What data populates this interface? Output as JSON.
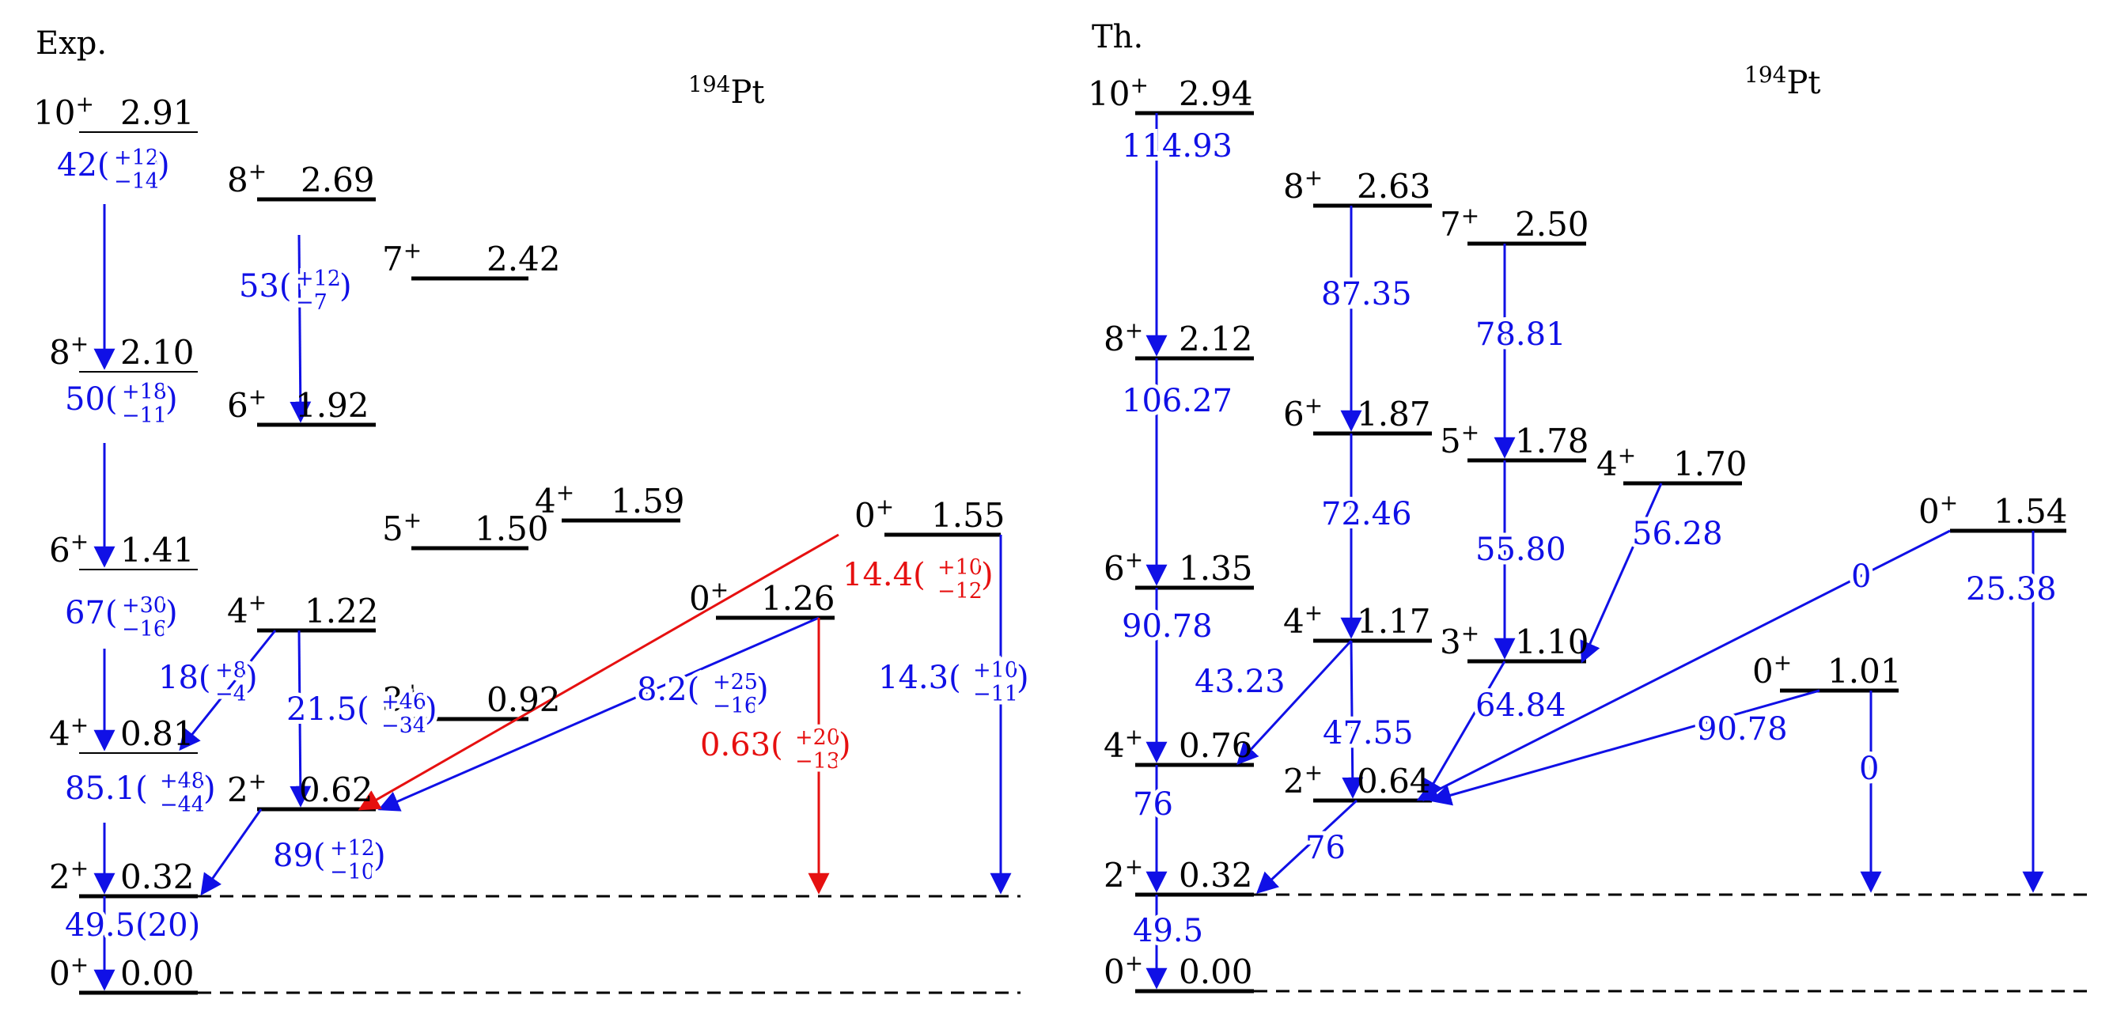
{
  "colors": {
    "level": "#000000",
    "transition": "#1010e6",
    "highlight": "#e61010",
    "background": "#ffffff"
  },
  "panels": [
    {
      "label": "Exp.",
      "nucleus": {
        "mass": "194",
        "element": "Pt"
      },
      "levels": [
        {
          "id": "e10",
          "spin": "10",
          "parity": "+",
          "energy": "2.91"
        },
        {
          "id": "e8g",
          "spin": "8",
          "parity": "+",
          "energy": "2.69"
        },
        {
          "id": "e7",
          "spin": "7",
          "parity": "+",
          "energy": "2.42"
        },
        {
          "id": "e8",
          "spin": "8",
          "parity": "+",
          "energy": "2.10"
        },
        {
          "id": "e6g",
          "spin": "6",
          "parity": "+",
          "energy": "1.92"
        },
        {
          "id": "e4b",
          "spin": "4",
          "parity": "+",
          "energy": "1.59"
        },
        {
          "id": "e0c",
          "spin": "0",
          "parity": "+",
          "energy": "1.55"
        },
        {
          "id": "e5",
          "spin": "5",
          "parity": "+",
          "energy": "1.50"
        },
        {
          "id": "e6",
          "spin": "6",
          "parity": "+",
          "energy": "1.41"
        },
        {
          "id": "e0b",
          "spin": "0",
          "parity": "+",
          "energy": "1.26"
        },
        {
          "id": "e4g",
          "spin": "4",
          "parity": "+",
          "energy": "1.22"
        },
        {
          "id": "e3",
          "spin": "3",
          "parity": "+",
          "energy": "0.92"
        },
        {
          "id": "e4",
          "spin": "4",
          "parity": "+",
          "energy": "0.81"
        },
        {
          "id": "e2g",
          "spin": "2",
          "parity": "+",
          "energy": "0.62"
        },
        {
          "id": "e2",
          "spin": "2",
          "parity": "+",
          "energy": "0.32"
        },
        {
          "id": "e0",
          "spin": "0",
          "parity": "+",
          "energy": "0.00"
        }
      ],
      "transitions": [
        {
          "from": "10+ 2.91",
          "to": "8+ 2.10",
          "value": "42",
          "err_up": "+12",
          "err_down": "−14",
          "color": "blue"
        },
        {
          "from": "8+ 2.69",
          "to": "6+ 1.92",
          "value": "53",
          "err_up": "+12",
          "err_down": "−7",
          "color": "blue"
        },
        {
          "from": "8+ 2.10",
          "to": "6+ 1.41",
          "value": "50",
          "err_up": "+18",
          "err_down": "−11",
          "color": "blue"
        },
        {
          "from": "6+ 1.41",
          "to": "4+ 0.81",
          "value": "67",
          "err_up": "+30",
          "err_down": "−16",
          "color": "blue"
        },
        {
          "from": "4+ 1.22",
          "to": "4+ 0.81",
          "value": "18",
          "err_up": "+8",
          "err_down": "−4",
          "color": "blue"
        },
        {
          "from": "4+ 1.22",
          "to": "2+ 0.62",
          "value": "21.5",
          "err_up": "+46",
          "err_down": "−34",
          "color": "blue"
        },
        {
          "from": "4+ 0.81",
          "to": "2+ 0.32",
          "value": "85.1",
          "err_up": "+48",
          "err_down": "−44",
          "color": "blue"
        },
        {
          "from": "2+ 0.62",
          "to": "2+ 0.32",
          "value": "89",
          "err_up": "+12",
          "err_down": "−10",
          "color": "blue"
        },
        {
          "from": "0+ 1.26",
          "to": "2+ 0.62",
          "value": "8.2",
          "err_up": "+25",
          "err_down": "−16",
          "color": "blue"
        },
        {
          "from": "0+ 1.55",
          "to": "2+ 0.62",
          "value": "14.4",
          "err_up": "+10",
          "err_down": "−12",
          "color": "red"
        },
        {
          "from": "0+ 1.26",
          "to": "2+ 0.32",
          "value": "0.63",
          "err_up": "+20",
          "err_down": "−13",
          "color": "red"
        },
        {
          "from": "0+ 1.55",
          "to": "2+ 0.32",
          "value": "14.3",
          "err_up": "+10",
          "err_down": "−11",
          "color": "blue"
        },
        {
          "from": "2+ 0.32",
          "to": "0+ 0.00",
          "value": "49.5(20)",
          "err_up": "",
          "err_down": "",
          "color": "blue"
        }
      ]
    },
    {
      "label": "Th.",
      "nucleus": {
        "mass": "194",
        "element": "Pt"
      },
      "levels": [
        {
          "id": "t10",
          "spin": "10",
          "parity": "+",
          "energy": "2.94"
        },
        {
          "id": "t8g",
          "spin": "8",
          "parity": "+",
          "energy": "2.63"
        },
        {
          "id": "t7",
          "spin": "7",
          "parity": "+",
          "energy": "2.50"
        },
        {
          "id": "t8",
          "spin": "8",
          "parity": "+",
          "energy": "2.12"
        },
        {
          "id": "t6g",
          "spin": "6",
          "parity": "+",
          "energy": "1.87"
        },
        {
          "id": "t5",
          "spin": "5",
          "parity": "+",
          "energy": "1.78"
        },
        {
          "id": "t4b",
          "spin": "4",
          "parity": "+",
          "energy": "1.70"
        },
        {
          "id": "t0c",
          "spin": "0",
          "parity": "+",
          "energy": "1.54"
        },
        {
          "id": "t6",
          "spin": "6",
          "parity": "+",
          "energy": "1.35"
        },
        {
          "id": "t4g",
          "spin": "4",
          "parity": "+",
          "energy": "1.17"
        },
        {
          "id": "t3",
          "spin": "3",
          "parity": "+",
          "energy": "1.10"
        },
        {
          "id": "t0b",
          "spin": "0",
          "parity": "+",
          "energy": "1.01"
        },
        {
          "id": "t4",
          "spin": "4",
          "parity": "+",
          "energy": "0.76"
        },
        {
          "id": "t2g",
          "spin": "2",
          "parity": "+",
          "energy": "0.64"
        },
        {
          "id": "t2",
          "spin": "2",
          "parity": "+",
          "energy": "0.32"
        },
        {
          "id": "t0",
          "spin": "0",
          "parity": "+",
          "energy": "0.00"
        }
      ],
      "transitions": [
        {
          "from": "10+ 2.94",
          "to": "8+ 2.12",
          "value": "114.93",
          "color": "blue"
        },
        {
          "from": "8+ 2.63",
          "to": "6+ 1.87",
          "value": "87.35",
          "color": "blue"
        },
        {
          "from": "7+ 2.50",
          "to": "5+ 1.78",
          "value": "78.81",
          "color": "blue"
        },
        {
          "from": "8+ 2.12",
          "to": "6+ 1.35",
          "value": "106.27",
          "color": "blue"
        },
        {
          "from": "6+ 1.87",
          "to": "4+ 1.17",
          "value": "72.46",
          "color": "blue"
        },
        {
          "from": "5+ 1.78",
          "to": "3+ 1.10",
          "value": "55.80",
          "color": "blue"
        },
        {
          "from": "4+ 1.70",
          "to": "3+ 1.10",
          "value": "56.28",
          "color": "blue"
        },
        {
          "from": "0+ 1.54",
          "to": "2+ 0.64",
          "value": "0",
          "color": "blue"
        },
        {
          "from": "0+ 1.54",
          "to": "2+ 0.32",
          "value": "25.38",
          "color": "blue"
        },
        {
          "from": "6+ 1.35",
          "to": "4+ 0.76",
          "value": "90.78",
          "color": "blue"
        },
        {
          "from": "4+ 1.17",
          "to": "4+ 0.76",
          "value": "43.23",
          "color": "blue"
        },
        {
          "from": "4+ 1.17",
          "to": "2+ 0.64",
          "value": "47.55",
          "color": "blue"
        },
        {
          "from": "3+ 1.10",
          "to": "2+ 0.64",
          "value": "64.84",
          "color": "blue"
        },
        {
          "from": "0+ 1.01",
          "to": "2+ 0.64",
          "value": "90.78",
          "color": "blue"
        },
        {
          "from": "0+ 1.01",
          "to": "2+ 0.32",
          "value": "0",
          "color": "blue"
        },
        {
          "from": "4+ 0.76",
          "to": "2+ 0.32",
          "value": "76",
          "color": "blue"
        },
        {
          "from": "2+ 0.64",
          "to": "2+ 0.32",
          "value": "76",
          "color": "blue"
        },
        {
          "from": "2+ 0.32",
          "to": "0+ 0.00",
          "value": "49.5",
          "color": "blue"
        }
      ]
    }
  ]
}
